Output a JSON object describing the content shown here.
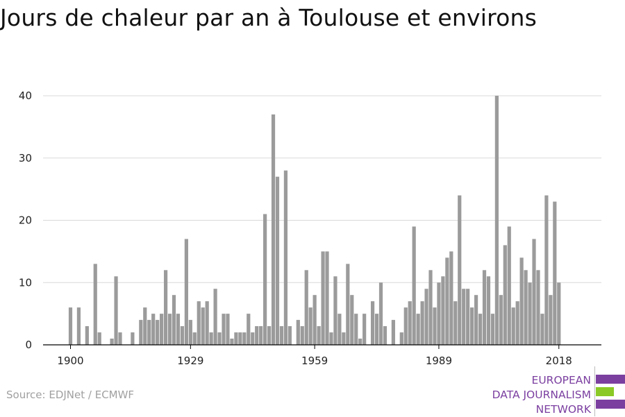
{
  "title": "Jours de chaleur par an à Toulouse et environs",
  "source": "Source: EDJNet / ECMWF",
  "logo": {
    "lines": [
      "EUROPEAN",
      "DATA JOURNALISM",
      "NETWORK"
    ],
    "colors": {
      "purple": "#7b3fa0",
      "green": "#8ac926"
    }
  },
  "chart_data": {
    "type": "bar",
    "title": "Jours de chaleur par an à Toulouse et environs",
    "xlabel": "",
    "ylabel": "",
    "x_ticks": [
      1900,
      1929,
      1959,
      1989,
      2018
    ],
    "y_ticks": [
      0,
      10,
      20,
      30,
      40
    ],
    "ylim": [
      0,
      40
    ],
    "xlim": [
      1894,
      2024
    ],
    "grid": true,
    "bar_color": "#9b9b9b",
    "years": [
      1900,
      1901,
      1902,
      1903,
      1904,
      1905,
      1906,
      1907,
      1908,
      1909,
      1910,
      1911,
      1912,
      1913,
      1914,
      1915,
      1916,
      1917,
      1918,
      1919,
      1920,
      1921,
      1922,
      1923,
      1924,
      1925,
      1926,
      1927,
      1928,
      1929,
      1930,
      1931,
      1932,
      1933,
      1934,
      1935,
      1936,
      1937,
      1938,
      1939,
      1940,
      1941,
      1942,
      1943,
      1944,
      1945,
      1946,
      1947,
      1948,
      1949,
      1950,
      1951,
      1952,
      1953,
      1954,
      1955,
      1956,
      1957,
      1958,
      1959,
      1960,
      1961,
      1962,
      1963,
      1964,
      1965,
      1966,
      1967,
      1968,
      1969,
      1970,
      1971,
      1972,
      1973,
      1974,
      1975,
      1976,
      1977,
      1978,
      1979,
      1980,
      1981,
      1982,
      1983,
      1984,
      1985,
      1986,
      1987,
      1988,
      1989,
      1990,
      1991,
      1992,
      1993,
      1994,
      1995,
      1996,
      1997,
      1998,
      1999,
      2000,
      2001,
      2002,
      2003,
      2004,
      2005,
      2006,
      2007,
      2008,
      2009,
      2010,
      2011,
      2012,
      2013,
      2014,
      2015,
      2016,
      2017,
      2018
    ],
    "values": [
      6,
      0,
      6,
      0,
      3,
      0,
      13,
      2,
      0,
      0,
      1,
      11,
      2,
      0,
      0,
      2,
      0,
      4,
      6,
      4,
      5,
      4,
      5,
      12,
      5,
      8,
      5,
      3,
      17,
      4,
      2,
      7,
      6,
      7,
      2,
      9,
      2,
      5,
      5,
      1,
      2,
      2,
      2,
      5,
      2,
      3,
      3,
      21,
      3,
      37,
      27,
      3,
      28,
      3,
      0,
      4,
      3,
      12,
      6,
      8,
      3,
      15,
      15,
      2,
      11,
      5,
      2,
      13,
      8,
      5,
      1,
      5,
      0,
      7,
      5,
      10,
      3,
      0,
      4,
      0,
      2,
      6,
      7,
      19,
      5,
      7,
      9,
      12,
      6,
      10,
      11,
      14,
      15,
      7,
      24,
      9,
      9,
      6,
      8,
      5,
      12,
      11,
      5,
      40,
      8,
      16,
      19,
      6,
      7,
      14,
      12,
      10,
      17,
      12,
      5,
      24,
      8,
      23,
      10
    ]
  }
}
